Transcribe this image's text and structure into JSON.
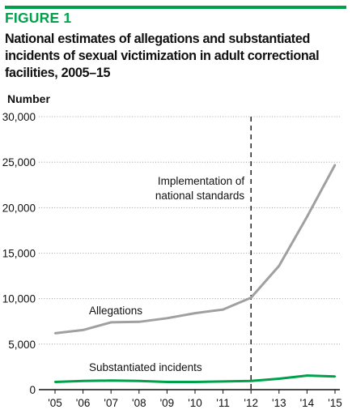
{
  "figure": {
    "label": "FIGURE 1",
    "title": "National estimates of allegations and substantiated incidents of sexual victimization in adult correctional facilities, 2005–15"
  },
  "colors": {
    "accent": "#00a14b",
    "allegations": "#a0a0a0",
    "substantiated": "#00a14b",
    "axis": "#111111",
    "grid": "#8c8c8c"
  },
  "chart_data": {
    "type": "line",
    "title": "National estimates of allegations and substantiated incidents of sexual victimization in adult correctional facilities, 2005–15",
    "ylabel": "Number",
    "xlabel": "",
    "ylim": [
      0,
      30000
    ],
    "yticks": [
      0,
      5000,
      10000,
      15000,
      20000,
      25000,
      30000
    ],
    "ytick_labels": [
      "0",
      "5,000",
      "10,000",
      "15,000",
      "20,000",
      "25,000",
      "30,000"
    ],
    "grid": "horizontal dotted",
    "legend": "inline labels",
    "categories": [
      "'05",
      "'06",
      "'07",
      "'08",
      "'09",
      "'10",
      "'11",
      "'12",
      "'13",
      "'14",
      "'15"
    ],
    "series": [
      {
        "name": "Allegations",
        "values": [
          6200,
          6550,
          7400,
          7450,
          7850,
          8400,
          8800,
          10100,
          13600,
          19000,
          24700
        ]
      },
      {
        "name": "Substantiated incidents",
        "values": [
          850,
          950,
          1000,
          950,
          850,
          850,
          900,
          950,
          1200,
          1550,
          1450
        ]
      }
    ],
    "annotations": [
      {
        "text_lines": [
          "Implementation of",
          "national standards"
        ],
        "at_category": "'12",
        "style": "dashed vertical line"
      }
    ]
  }
}
